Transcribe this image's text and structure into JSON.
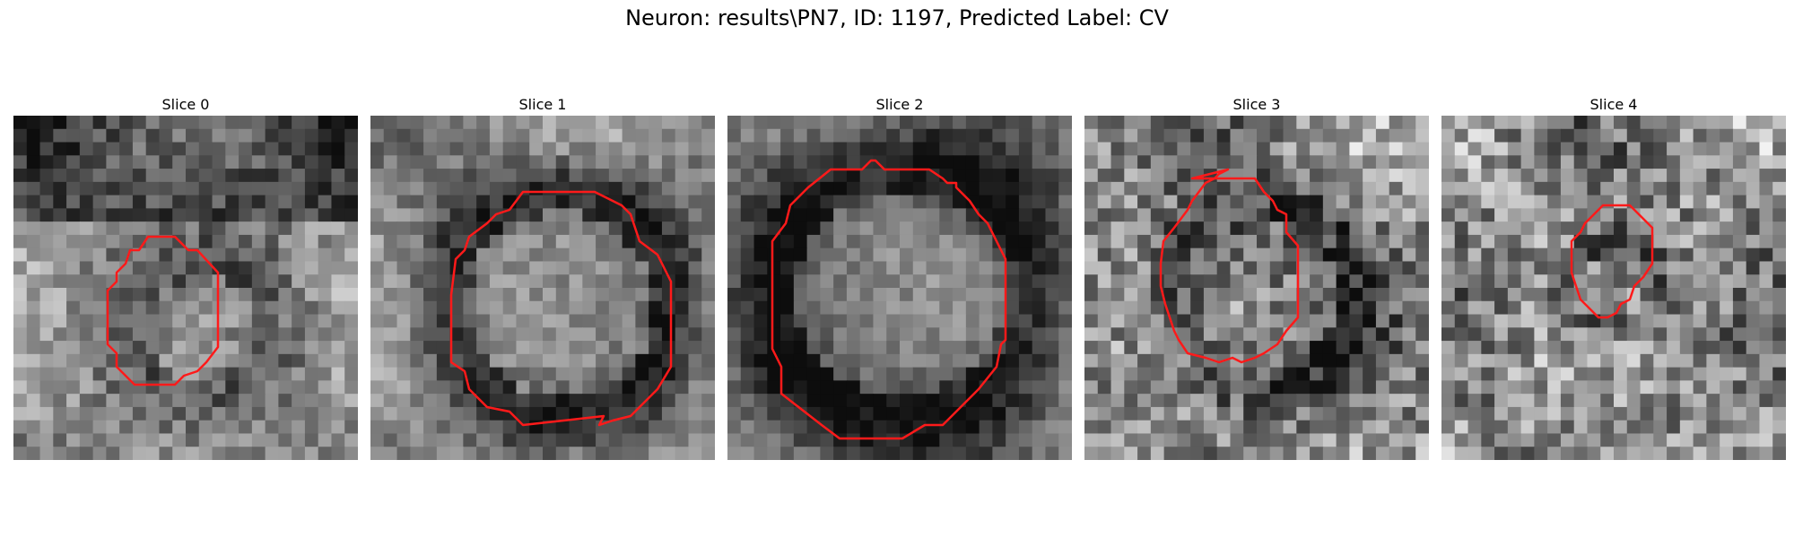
{
  "figure": {
    "title": "Neuron: results\\PN7, ID: 1197, Predicted Label: CV"
  },
  "panels": [
    {
      "title": "Slice 0",
      "contour_color": "#ff1a1a",
      "contour": "octagon-small-left"
    },
    {
      "title": "Slice 1",
      "contour_color": "#ff1a1a",
      "contour": "octagon-large"
    },
    {
      "title": "Slice 2",
      "contour_color": "#ff1a1a",
      "contour": "octagon-largest"
    },
    {
      "title": "Slice 3",
      "contour_color": "#ff1a1a",
      "contour": "octagon-medium"
    },
    {
      "title": "Slice 4",
      "contour_color": "#ff1a1a",
      "contour": "octagon-small-upper"
    }
  ]
}
